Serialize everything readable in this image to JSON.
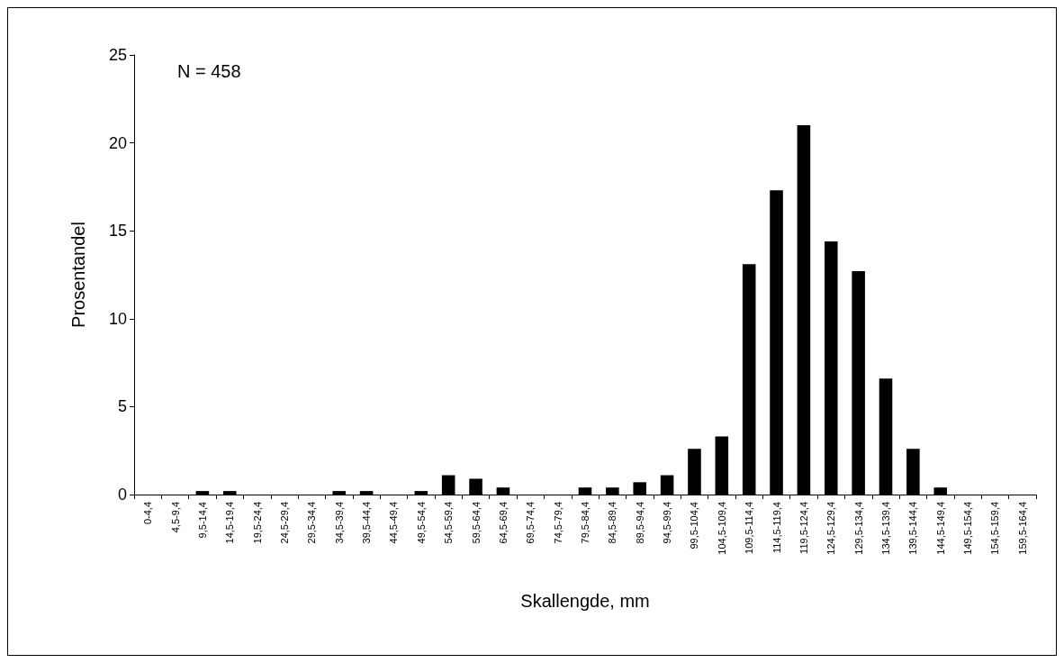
{
  "chart_data": {
    "type": "bar",
    "xlabel": "Skallengde, mm",
    "ylabel": "Prosentandel",
    "annotations": [
      "N = 458"
    ],
    "categories": [
      "0-4,4",
      "4,5-9,4",
      "9,5-14,4",
      "14,5-19,4",
      "19,5-24,4",
      "24,5-29,4",
      "29,5-34,4",
      "34,5-39,4",
      "39,5-44,4",
      "44,5-49,4",
      "49,5-54,4",
      "54,5-59,4",
      "59,5-64,4",
      "64,5-69,4",
      "69,5-74,4",
      "74,5-79,4",
      "79,5-84,4",
      "84,5-89,4",
      "89,5-94,4",
      "94,5-99,4",
      "99,5-104,4",
      "104,5-109,4",
      "109,5-114,4",
      "114,5-119,4",
      "119,5-124,4",
      "124,5-129,4",
      "129,5-134,4",
      "134,5-139,4",
      "139,5-144,4",
      "144,5-149,4",
      "149,5-154,4",
      "154,5-159,4",
      "159,5-164,4"
    ],
    "values": [
      0,
      0,
      0.2,
      0.2,
      0,
      0,
      0,
      0.2,
      0.2,
      0,
      0.2,
      1.1,
      0.9,
      0.4,
      0,
      0,
      0.4,
      0.4,
      0.7,
      1.1,
      2.6,
      3.3,
      13.1,
      17.3,
      21.0,
      14.4,
      12.7,
      6.6,
      2.6,
      0.4,
      0,
      0,
      0
    ],
    "color": "#000000",
    "ylim": [
      0,
      25
    ],
    "yticks": [
      0,
      5,
      10,
      15,
      20,
      25
    ],
    "grid": false
  }
}
